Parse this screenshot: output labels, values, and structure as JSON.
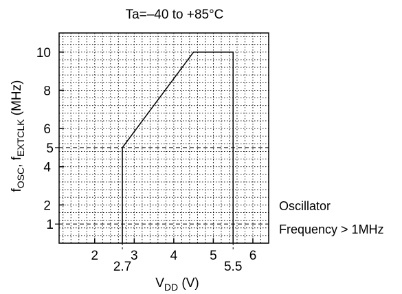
{
  "chart_data": {
    "type": "area",
    "title": "Ta=–40 to +85°C",
    "ylabel": {
      "main": "f",
      "sub1": "OSC",
      "sep": ", f",
      "sub2": "EXTCLK",
      "unit": " (MHz)"
    },
    "xlabel": {
      "main": "V",
      "sub": "DD",
      "unit": " (V)"
    },
    "xlim": [
      1.1,
      6.4
    ],
    "ylim": [
      0,
      11
    ],
    "x_ticks": [
      2,
      3,
      4,
      5,
      6
    ],
    "y_ticks": [
      2,
      4,
      6,
      8,
      10
    ],
    "extra_y_labels": [
      1,
      5
    ],
    "extra_x_labels": [
      2.7,
      5.5
    ],
    "grid": true,
    "grid_minor_x": 0.2,
    "grid_minor_y": 0.4,
    "operating_region": {
      "x": [
        2.7,
        2.7,
        4.5,
        5.5,
        5.5
      ],
      "y": [
        0,
        5,
        10,
        10,
        0
      ]
    },
    "dashed_reference_y": [
      1,
      5
    ],
    "annotation": {
      "line1": "Oscillator",
      "line2": "Frequency > 1MHz"
    }
  }
}
